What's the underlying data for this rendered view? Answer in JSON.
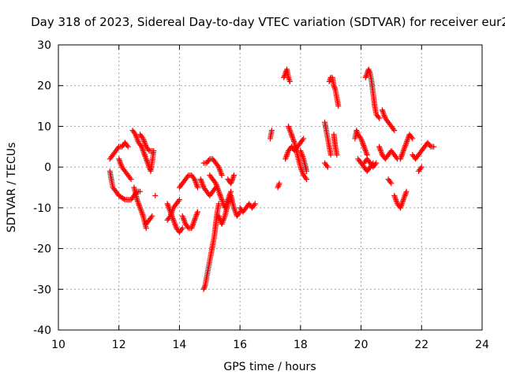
{
  "chart_data": {
    "type": "scatter",
    "title": "Day 318 of 2023, Sidereal Day-to-day VTEC variation (SDTVAR) for receiver eur2",
    "xlabel": "GPS time / hours",
    "ylabel": "SDTVAR / TECUs",
    "xlim": [
      10,
      24
    ],
    "ylim": [
      -40,
      30
    ],
    "xticks": [
      10,
      12,
      14,
      16,
      18,
      20,
      22,
      24
    ],
    "yticks": [
      -40,
      -30,
      -20,
      -10,
      0,
      10,
      20,
      30
    ],
    "grid": true,
    "marker": "+",
    "color": "#ff0000",
    "segments": [
      {
        "x": [
          11.7,
          11.8,
          11.9,
          12.0,
          12.1,
          12.2,
          12.3
        ],
        "y": [
          2,
          3,
          4,
          5,
          5,
          6,
          5
        ]
      },
      {
        "x": [
          11.7,
          11.75,
          11.8,
          11.9,
          12.0,
          12.2,
          12.4,
          12.5,
          12.6,
          12.7
        ],
        "y": [
          -1,
          -3,
          -5,
          -6,
          -7,
          -8,
          -8,
          -7,
          -6,
          -6
        ]
      },
      {
        "x": [
          12.0,
          12.1,
          12.2,
          12.3,
          12.4
        ],
        "y": [
          2,
          0,
          -1,
          -2,
          -3
        ]
      },
      {
        "x": [
          12.45,
          12.55,
          12.65,
          12.75,
          12.85,
          12.95,
          13.05,
          13.15
        ],
        "y": [
          9,
          8,
          6,
          5,
          3,
          1,
          -1,
          4
        ]
      },
      {
        "x": [
          12.5,
          12.6,
          12.7,
          12.8,
          12.9
        ],
        "y": [
          -5,
          -8,
          -10,
          -12,
          -15
        ]
      },
      {
        "x": [
          12.7,
          12.8,
          12.9,
          13.0,
          13.1
        ],
        "y": [
          8,
          7,
          5,
          4,
          4
        ]
      },
      {
        "x": [
          12.9,
          13.0,
          13.1
        ],
        "y": [
          -14,
          -13,
          -12
        ]
      },
      {
        "x": [
          13.2
        ],
        "y": [
          -7
        ]
      },
      {
        "x": [
          13.6,
          13.7,
          13.8,
          13.9,
          14.0,
          14.1
        ],
        "y": [
          -9,
          -11,
          -13,
          -15,
          -16,
          -15
        ]
      },
      {
        "x": [
          13.6,
          13.7,
          13.8,
          13.9,
          14.0
        ],
        "y": [
          -13,
          -12,
          -10,
          -9,
          -8
        ]
      },
      {
        "x": [
          14.1,
          14.2,
          14.3,
          14.4,
          14.5,
          14.6
        ],
        "y": [
          -12,
          -14,
          -15,
          -15,
          -13,
          -11
        ]
      },
      {
        "x": [
          14.0,
          14.1,
          14.2,
          14.3,
          14.4,
          14.5,
          14.6
        ],
        "y": [
          -5,
          -4,
          -3,
          -2,
          -2,
          -3,
          -5
        ]
      },
      {
        "x": [
          14.8,
          14.85,
          14.9,
          14.95,
          15.0,
          15.05,
          15.1,
          15.15,
          15.2,
          15.25,
          15.3
        ],
        "y": [
          -30,
          -29,
          -27,
          -25,
          -23,
          -21,
          -19,
          -17,
          -14,
          -11,
          -9
        ]
      },
      {
        "x": [
          14.8,
          14.9,
          15.0,
          15.1,
          15.2,
          15.3,
          15.4
        ],
        "y": [
          1,
          1,
          2,
          2,
          1,
          0,
          -2
        ]
      },
      {
        "x": [
          14.7,
          14.8,
          14.9,
          15.0,
          15.1,
          15.2
        ],
        "y": [
          -3,
          -5,
          -6,
          -7,
          -6,
          -5
        ]
      },
      {
        "x": [
          15.0,
          15.1,
          15.2,
          15.3,
          15.4,
          15.5,
          15.6,
          15.7
        ],
        "y": [
          -2,
          -3,
          -4,
          -6,
          -8,
          -10,
          -8,
          -6
        ]
      },
      {
        "x": [
          15.3,
          15.4,
          15.5,
          15.6,
          15.7,
          15.8,
          15.9,
          16.0
        ],
        "y": [
          -12,
          -14,
          -12,
          -9,
          -7,
          -10,
          -12,
          -11
        ]
      },
      {
        "x": [
          15.6,
          15.7,
          15.8
        ],
        "y": [
          -3,
          -4,
          -2
        ]
      },
      {
        "x": [
          16.0,
          16.1,
          16.2,
          16.3,
          16.4,
          16.5
        ],
        "y": [
          -10,
          -11,
          -10,
          -9,
          -10,
          -9
        ]
      },
      {
        "x": [
          17.0,
          17.05
        ],
        "y": [
          7,
          9
        ]
      },
      {
        "x": [
          17.25,
          17.3
        ],
        "y": [
          -5,
          -4
        ]
      },
      {
        "x": [
          17.45,
          17.5,
          17.55,
          17.6,
          17.65
        ],
        "y": [
          22,
          23,
          24,
          22,
          21
        ]
      },
      {
        "x": [
          17.5,
          17.6,
          17.7,
          17.8,
          17.9,
          18.0,
          18.1
        ],
        "y": [
          2,
          4,
          5,
          4,
          5,
          6,
          7
        ]
      },
      {
        "x": [
          17.6,
          17.7,
          17.8,
          17.9,
          18.0,
          18.1,
          18.2
        ],
        "y": [
          10,
          8,
          6,
          3,
          0,
          -2,
          -3
        ]
      },
      {
        "x": [
          18.0,
          18.1,
          18.2
        ],
        "y": [
          4,
          2,
          -1
        ]
      },
      {
        "x": [
          18.8,
          18.85,
          18.9,
          18.95,
          19.0
        ],
        "y": [
          11,
          9,
          7,
          5,
          3
        ]
      },
      {
        "x": [
          18.8,
          18.9
        ],
        "y": [
          1,
          0
        ]
      },
      {
        "x": [
          18.95,
          19.0,
          19.05,
          19.1,
          19.15,
          19.2,
          19.25
        ],
        "y": [
          21,
          22,
          22,
          20,
          19,
          17,
          15
        ]
      },
      {
        "x": [
          19.1,
          19.15,
          19.2
        ],
        "y": [
          8,
          5,
          3
        ]
      },
      {
        "x": [
          19.8,
          19.85,
          19.9,
          20.0,
          20.1,
          20.2
        ],
        "y": [
          7,
          9,
          8,
          7,
          5,
          3
        ]
      },
      {
        "x": [
          20.1,
          20.2,
          20.3,
          20.4,
          20.5
        ],
        "y": [
          1,
          2,
          1,
          0,
          1
        ]
      },
      {
        "x": [
          19.9,
          20.0,
          20.1,
          20.2,
          20.3,
          20.4
        ],
        "y": [
          2,
          1,
          0,
          -1,
          0,
          1
        ]
      },
      {
        "x": [
          20.15,
          20.2,
          20.25,
          20.3,
          20.35,
          20.4,
          20.45,
          20.5,
          20.6
        ],
        "y": [
          22,
          23,
          24,
          23,
          21,
          18,
          15,
          13,
          12
        ]
      },
      {
        "x": [
          20.7,
          20.8,
          20.9,
          21.0,
          21.1
        ],
        "y": [
          14,
          12,
          11,
          10,
          9
        ]
      },
      {
        "x": [
          20.6,
          20.7,
          20.8,
          20.9,
          21.0,
          21.1,
          21.2
        ],
        "y": [
          5,
          3,
          2,
          3,
          4,
          3,
          2
        ]
      },
      {
        "x": [
          20.9,
          21.0
        ],
        "y": [
          -3,
          -4
        ]
      },
      {
        "x": [
          21.1,
          21.2,
          21.3,
          21.4,
          21.5
        ],
        "y": [
          -7,
          -9,
          -10,
          -8,
          -6
        ]
      },
      {
        "x": [
          21.3,
          21.4,
          21.5,
          21.6,
          21.7
        ],
        "y": [
          2,
          4,
          6,
          8,
          7
        ]
      },
      {
        "x": [
          21.7,
          21.8,
          21.9,
          22.0,
          22.1,
          22.2,
          22.3,
          22.4
        ],
        "y": [
          3,
          2,
          3,
          4,
          5,
          6,
          5,
          5
        ]
      },
      {
        "x": [
          21.9,
          22.0
        ],
        "y": [
          -1,
          0
        ]
      }
    ]
  }
}
